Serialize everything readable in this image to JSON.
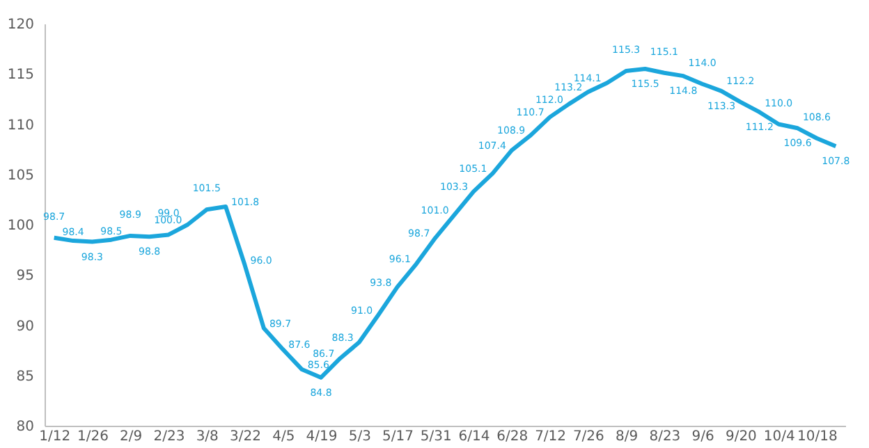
{
  "chart_data": {
    "type": "line",
    "categories": [
      "1/12",
      null,
      "1/26",
      null,
      "2/9",
      null,
      "2/23",
      null,
      "3/8",
      null,
      "3/22",
      null,
      "4/5",
      null,
      "4/19",
      null,
      "5/3",
      null,
      "5/17",
      null,
      "5/31",
      null,
      "6/14",
      null,
      "6/28",
      null,
      "7/12",
      null,
      "7/26",
      null,
      "8/9",
      null,
      "8/23",
      null,
      "9/6",
      null,
      "9/20",
      null,
      "10/4",
      null,
      "10/18",
      null
    ],
    "series": [
      {
        "color": "#1ba6dc",
        "values": [
          98.7,
          98.4,
          98.3,
          98.5,
          98.9,
          98.8,
          99.0,
          100.0,
          101.5,
          101.8,
          96.0,
          89.7,
          87.6,
          85.6,
          84.8,
          86.7,
          88.3,
          91.0,
          93.8,
          96.1,
          98.7,
          101.0,
          103.3,
          105.1,
          107.4,
          108.9,
          110.7,
          112.0,
          113.2,
          114.1,
          115.3,
          115.5,
          115.1,
          114.8,
          114.0,
          113.3,
          112.2,
          111.2,
          110.0,
          109.6,
          108.6,
          107.8
        ],
        "value_labels": [
          "98.7",
          "98.4",
          "98.3",
          "98.5",
          "98.9",
          "98.8",
          "99.0",
          "100.0",
          "101.5",
          "101.8",
          "96.0",
          "89.7",
          "87.6",
          "85.6",
          "84.8",
          "86.7",
          "88.3",
          "91.0",
          "93.8",
          "96.1",
          "98.7",
          "101.0",
          "103.3",
          "105.1",
          "107.4",
          "108.9",
          "110.7",
          "112.0",
          "113.2",
          "114.1",
          "115.3",
          "115.5",
          "115.1",
          "114.8",
          "114.0",
          "113.3",
          "112.2",
          "111.2",
          "110.0",
          "109.6",
          "108.6",
          "107.8"
        ]
      }
    ],
    "ylim": [
      80,
      120
    ],
    "yticks": [
      80,
      85,
      90,
      95,
      100,
      105,
      110,
      115,
      120
    ],
    "grid": false,
    "legend": false,
    "marker": "none",
    "line_style": "solid"
  }
}
